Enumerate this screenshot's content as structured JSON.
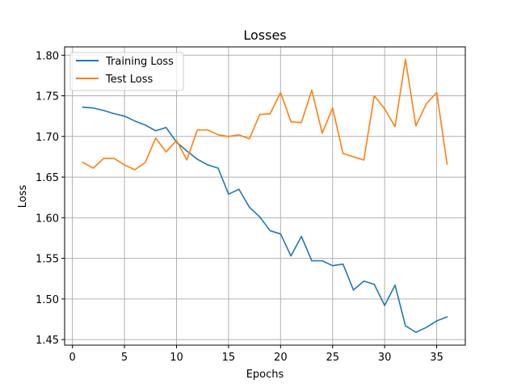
{
  "chart_data": {
    "type": "line",
    "title": "Losses",
    "xlabel": "Epochs",
    "ylabel": "Loss",
    "xlim": [
      -0.75,
      37.75
    ],
    "ylim": [
      1.4432,
      1.8102
    ],
    "xticks": [
      0,
      5,
      10,
      15,
      20,
      25,
      30,
      35
    ],
    "yticks": [
      1.45,
      1.5,
      1.55,
      1.6,
      1.65,
      1.7,
      1.75,
      1.8
    ],
    "ytick_labels": [
      "1.45",
      "1.50",
      "1.55",
      "1.60",
      "1.65",
      "1.70",
      "1.75",
      "1.80"
    ],
    "grid": true,
    "legend_position": "top-left",
    "x": [
      1,
      2,
      3,
      4,
      5,
      6,
      7,
      8,
      9,
      10,
      11,
      12,
      13,
      14,
      15,
      16,
      17,
      18,
      19,
      20,
      21,
      22,
      23,
      24,
      25,
      26,
      27,
      28,
      29,
      30,
      31,
      32,
      33,
      34,
      35,
      36
    ],
    "series": [
      {
        "name": "Training Loss",
        "color": "#1f77b4",
        "values": [
          1.736,
          1.735,
          1.732,
          1.728,
          1.725,
          1.719,
          1.714,
          1.707,
          1.711,
          1.693,
          1.682,
          1.672,
          1.665,
          1.661,
          1.629,
          1.635,
          1.613,
          1.601,
          1.584,
          1.58,
          1.553,
          1.577,
          1.547,
          1.547,
          1.541,
          1.543,
          1.511,
          1.522,
          1.518,
          1.492,
          1.517,
          1.467,
          1.459,
          1.465,
          1.473,
          1.478
        ]
      },
      {
        "name": "Test Loss",
        "color": "#ff7f0e",
        "values": [
          1.668,
          1.661,
          1.673,
          1.673,
          1.665,
          1.659,
          1.668,
          1.698,
          1.681,
          1.695,
          1.671,
          1.708,
          1.708,
          1.702,
          1.7,
          1.702,
          1.697,
          1.727,
          1.728,
          1.754,
          1.718,
          1.717,
          1.757,
          1.704,
          1.735,
          1.679,
          1.675,
          1.671,
          1.75,
          1.734,
          1.712,
          1.795,
          1.713,
          1.74,
          1.754,
          1.666
        ]
      }
    ]
  }
}
